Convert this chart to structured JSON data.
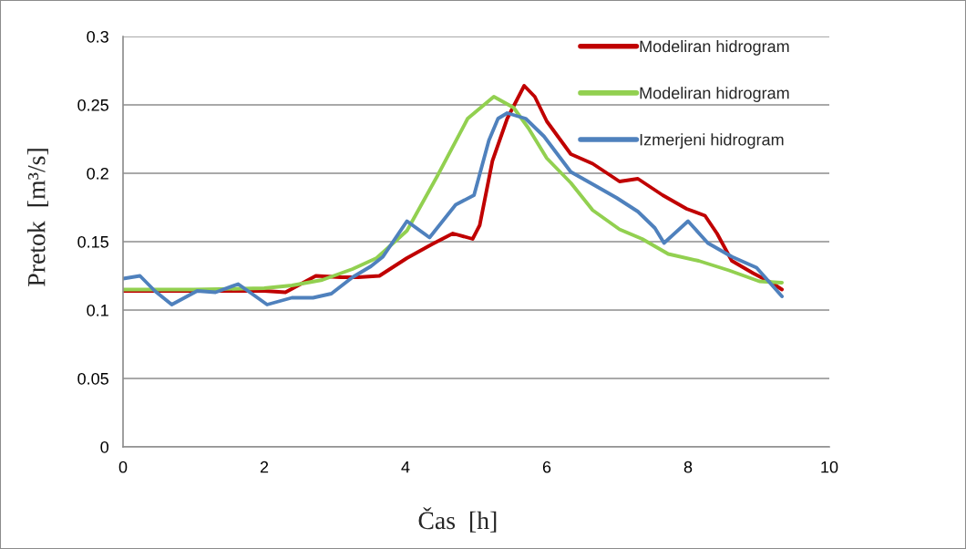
{
  "chart_data": {
    "type": "line",
    "xlabel": "Čas  [h]",
    "ylabel": "Pretok  [m³/s]",
    "xlim": [
      0,
      10
    ],
    "xticks": [
      0,
      2,
      4,
      6,
      8,
      10
    ],
    "ylim": [
      0,
      0.3
    ],
    "yticks": [
      0,
      0.05,
      0.1,
      0.15,
      0.2,
      0.25,
      0.3
    ],
    "grid": "y",
    "legend": "top right",
    "marker": "none",
    "line_style": "solid",
    "series": [
      {
        "name": "Modeliran hidrogram",
        "color": "#c00000",
        "x": [
          0,
          0.5,
          1,
          1.5,
          2,
          2.3,
          2.73,
          3.08,
          3.33,
          3.63,
          4.02,
          4.37,
          4.67,
          4.95,
          5.05,
          5.23,
          5.44,
          5.68,
          5.83,
          6.0,
          6.34,
          6.65,
          7.03,
          7.29,
          7.64,
          7.98,
          8.24,
          8.41,
          8.62,
          8.92,
          9.18,
          9.33
        ],
        "values": [
          0.114,
          0.114,
          0.114,
          0.114,
          0.114,
          0.113,
          0.125,
          0.124,
          0.124,
          0.125,
          0.138,
          0.148,
          0.156,
          0.152,
          0.162,
          0.209,
          0.24,
          0.264,
          0.256,
          0.238,
          0.214,
          0.207,
          0.194,
          0.196,
          0.184,
          0.174,
          0.169,
          0.156,
          0.136,
          0.127,
          0.12,
          0.115
        ]
      },
      {
        "name": "Modeliran hidrogram",
        "color": "#92d050",
        "x": [
          0,
          1,
          2,
          2.39,
          2.82,
          3.25,
          3.59,
          4.02,
          4.45,
          4.88,
          5.25,
          5.53,
          5.74,
          6.0,
          6.34,
          6.65,
          7.03,
          7.35,
          7.72,
          8.15,
          8.58,
          9.01,
          9.33
        ],
        "values": [
          0.115,
          0.115,
          0.116,
          0.118,
          0.122,
          0.13,
          0.138,
          0.158,
          0.198,
          0.24,
          0.256,
          0.248,
          0.233,
          0.211,
          0.193,
          0.173,
          0.159,
          0.152,
          0.141,
          0.136,
          0.129,
          0.121,
          0.12
        ]
      },
      {
        "name": "Izmerjeni hidrogram",
        "color": "#4f81bd",
        "x": [
          0,
          0.24,
          0.45,
          0.69,
          1.05,
          1.31,
          1.63,
          1.85,
          2.04,
          2.39,
          2.69,
          2.95,
          3.25,
          3.51,
          3.68,
          4.02,
          4.34,
          4.71,
          4.97,
          5.18,
          5.31,
          5.44,
          5.7,
          5.96,
          6.34,
          6.65,
          6.99,
          7.29,
          7.53,
          7.66,
          8.0,
          8.28,
          8.62,
          8.97,
          9.33
        ],
        "values": [
          0.123,
          0.125,
          0.114,
          0.104,
          0.114,
          0.113,
          0.119,
          0.111,
          0.104,
          0.109,
          0.109,
          0.112,
          0.124,
          0.132,
          0.139,
          0.165,
          0.153,
          0.177,
          0.184,
          0.224,
          0.24,
          0.244,
          0.24,
          0.227,
          0.201,
          0.192,
          0.182,
          0.172,
          0.16,
          0.149,
          0.165,
          0.149,
          0.139,
          0.131,
          0.11
        ]
      }
    ]
  }
}
